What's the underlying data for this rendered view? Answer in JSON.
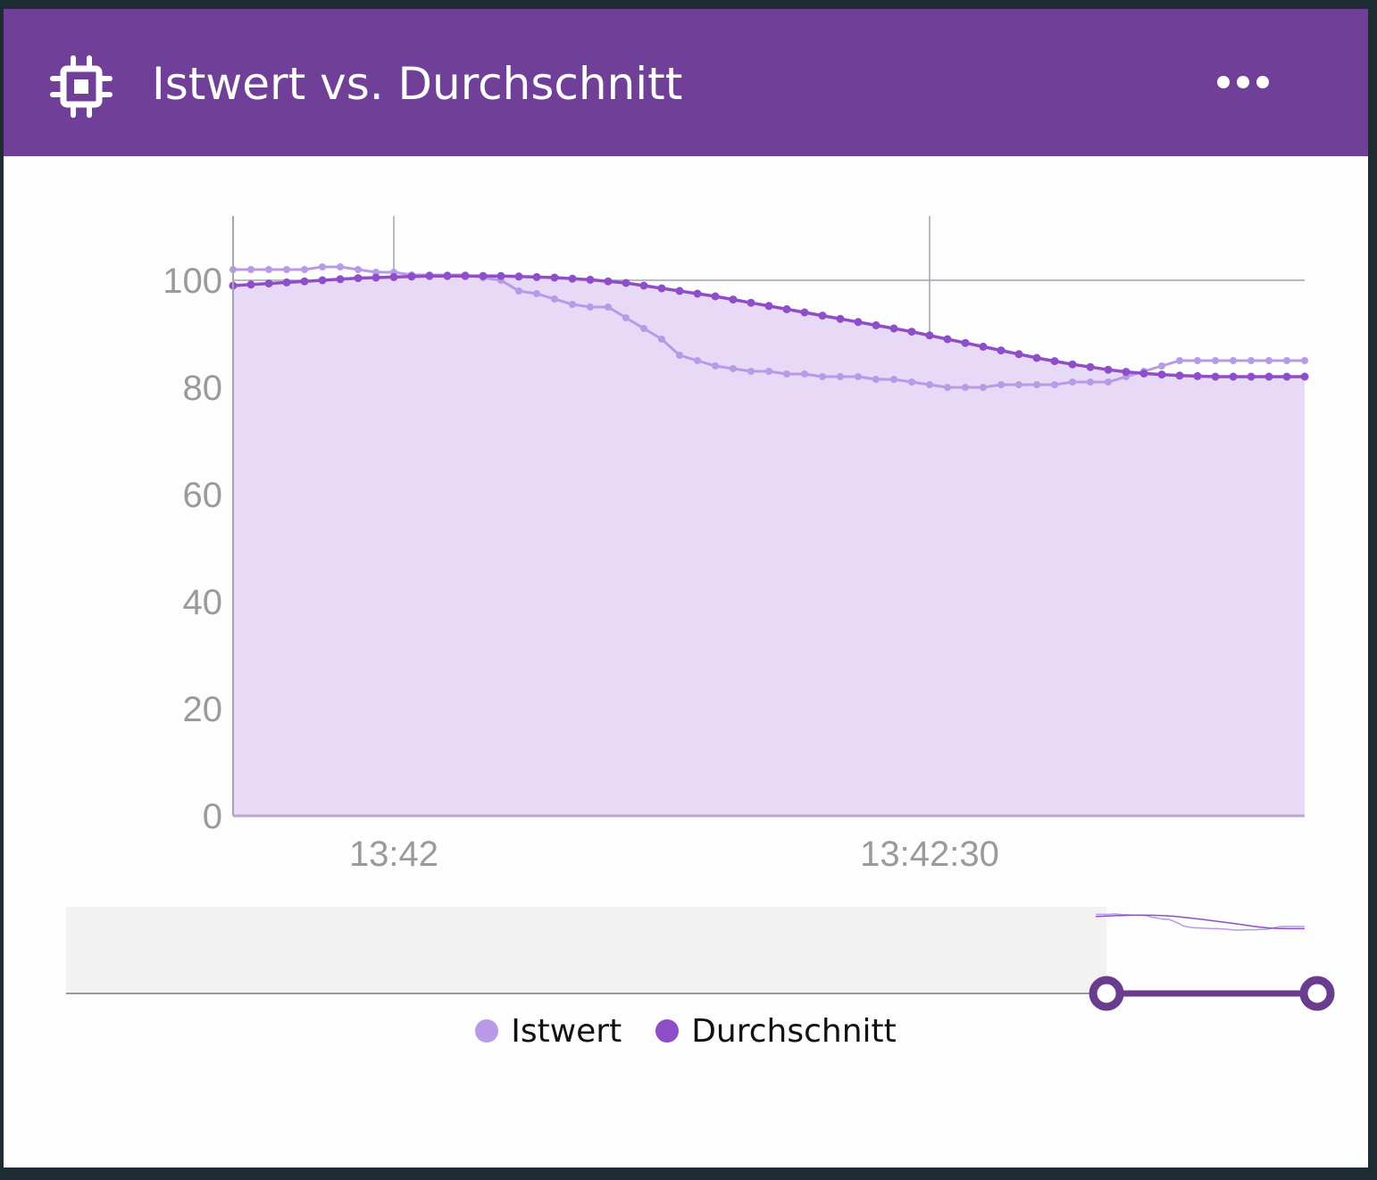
{
  "header": {
    "icon": "cpu-chip-icon",
    "title": "Istwert vs. Durchschnitt",
    "menu_icon": "more-horizontal-icon"
  },
  "colors": {
    "header_bg": "#703f98",
    "istwert": "#b89ae6",
    "durchschnitt": "#8e4ec8",
    "area_fill": "#e8d9f7",
    "slider_handle": "#6a3c8e"
  },
  "legend": {
    "items": [
      {
        "label": "Istwert",
        "color": "#b89ae6"
      },
      {
        "label": "Durchschnitt",
        "color": "#8e4ec8"
      }
    ]
  },
  "chart_data": {
    "type": "area",
    "x_unit": "seconds after 13:41:51",
    "x_range": [
      0,
      60
    ],
    "xticks": [
      {
        "value": 9,
        "label": "13:42"
      },
      {
        "value": 39,
        "label": "13:42:30"
      }
    ],
    "ylim": [
      0,
      112
    ],
    "yticks": [
      0,
      20,
      40,
      60,
      80,
      100
    ],
    "grid": true,
    "legend_position": "bottom",
    "series": [
      {
        "name": "Istwert",
        "fill": false,
        "values": [
          102,
          102,
          102,
          102,
          102,
          102.5,
          102.5,
          102,
          101.5,
          101.5,
          101,
          101,
          101,
          101,
          100.5,
          100,
          98,
          97.5,
          96.5,
          95.5,
          95,
          95,
          93,
          91,
          89,
          86,
          85,
          84,
          83.5,
          83,
          83,
          82.5,
          82.5,
          82,
          82,
          82,
          81.5,
          81.5,
          81,
          80.5,
          80,
          80,
          80,
          80.5,
          80.5,
          80.5,
          80.5,
          81,
          81,
          81,
          82,
          83,
          84,
          85,
          85,
          85,
          85,
          85,
          85,
          85,
          85
        ]
      },
      {
        "name": "Durchschnitt",
        "fill": true,
        "values": [
          99,
          99.2,
          99.4,
          99.6,
          99.8,
          100,
          100.2,
          100.4,
          100.5,
          100.6,
          100.7,
          100.8,
          100.8,
          100.8,
          100.8,
          100.8,
          100.7,
          100.6,
          100.5,
          100.3,
          100.1,
          99.8,
          99.5,
          99,
          98.5,
          98,
          97.5,
          97,
          96.4,
          95.8,
          95.2,
          94.6,
          94,
          93.4,
          92.8,
          92.2,
          91.6,
          91,
          90.4,
          89.7,
          89,
          88.3,
          87.6,
          86.9,
          86.2,
          85.5,
          84.9,
          84.3,
          83.8,
          83.3,
          82.9,
          82.6,
          82.4,
          82.2,
          82.1,
          82,
          82,
          82,
          82,
          82,
          82
        ]
      }
    ],
    "navigator": {
      "selected_range": [
        0.84,
        1.0
      ]
    }
  }
}
